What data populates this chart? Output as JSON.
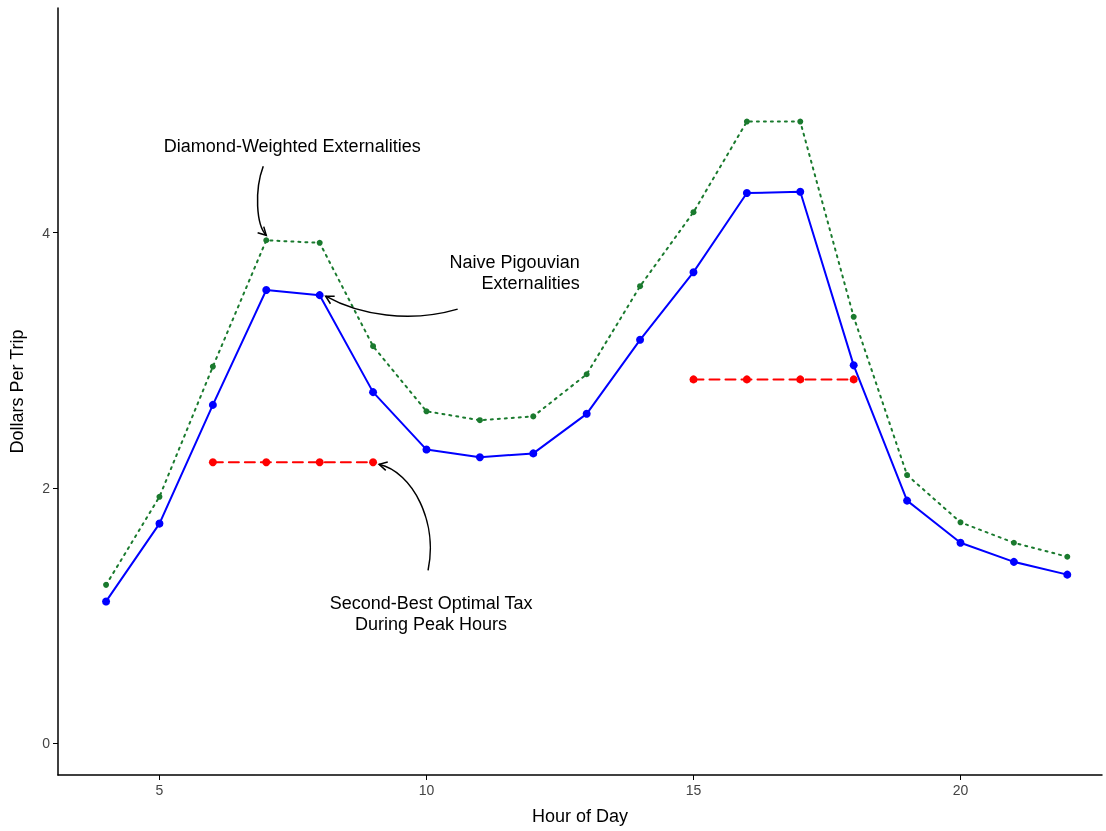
{
  "chart_data": {
    "type": "line",
    "xlabel": "Hour of Day",
    "ylabel": "Dollars Per Trip",
    "x": [
      4,
      5,
      6,
      7,
      8,
      9,
      10,
      11,
      12,
      13,
      14,
      15,
      16,
      17,
      18,
      19,
      20,
      21,
      22
    ],
    "series": [
      {
        "color": "#1a7a2e",
        "line_style": "dotted",
        "values": [
          1.24,
          1.93,
          2.95,
          3.94,
          3.92,
          3.11,
          2.6,
          2.53,
          2.56,
          2.89,
          3.58,
          4.16,
          4.87,
          4.87,
          3.34,
          2.1,
          1.73,
          1.57,
          1.46
        ]
      },
      {
        "color": "#0000ff",
        "line_style": "solid",
        "values": [
          1.11,
          1.72,
          2.65,
          3.55,
          3.51,
          2.75,
          2.3,
          2.24,
          2.27,
          2.58,
          3.16,
          3.69,
          4.31,
          4.32,
          2.96,
          1.9,
          1.57,
          1.42,
          1.32
        ]
      },
      {
        "color": "#ff0000",
        "line_style": "dashed",
        "values": [
          null,
          null,
          2.2,
          2.2,
          2.2,
          2.2,
          null,
          null,
          null,
          null,
          null,
          2.85,
          2.85,
          2.85,
          2.85,
          null,
          null,
          null,
          null
        ]
      }
    ],
    "marker": "circle",
    "grid": false,
    "xlim": [
      3.1,
      22.65
    ],
    "xticks": [
      5,
      10,
      15,
      20
    ],
    "ylim": [
      -0.25,
      5.76
    ],
    "yticks": [
      0,
      2,
      4
    ],
    "annotations": [
      {
        "text": "Diamond-Weighted Externalities",
        "x": 7,
        "y": 3.94
      },
      {
        "text": "Naive Pigouvian\nExternalities",
        "x": 8,
        "y": 3.51
      },
      {
        "text": "Second-Best Optimal Tax\nDuring Peak Hours",
        "x": 9,
        "y": 2.2
      }
    ]
  }
}
